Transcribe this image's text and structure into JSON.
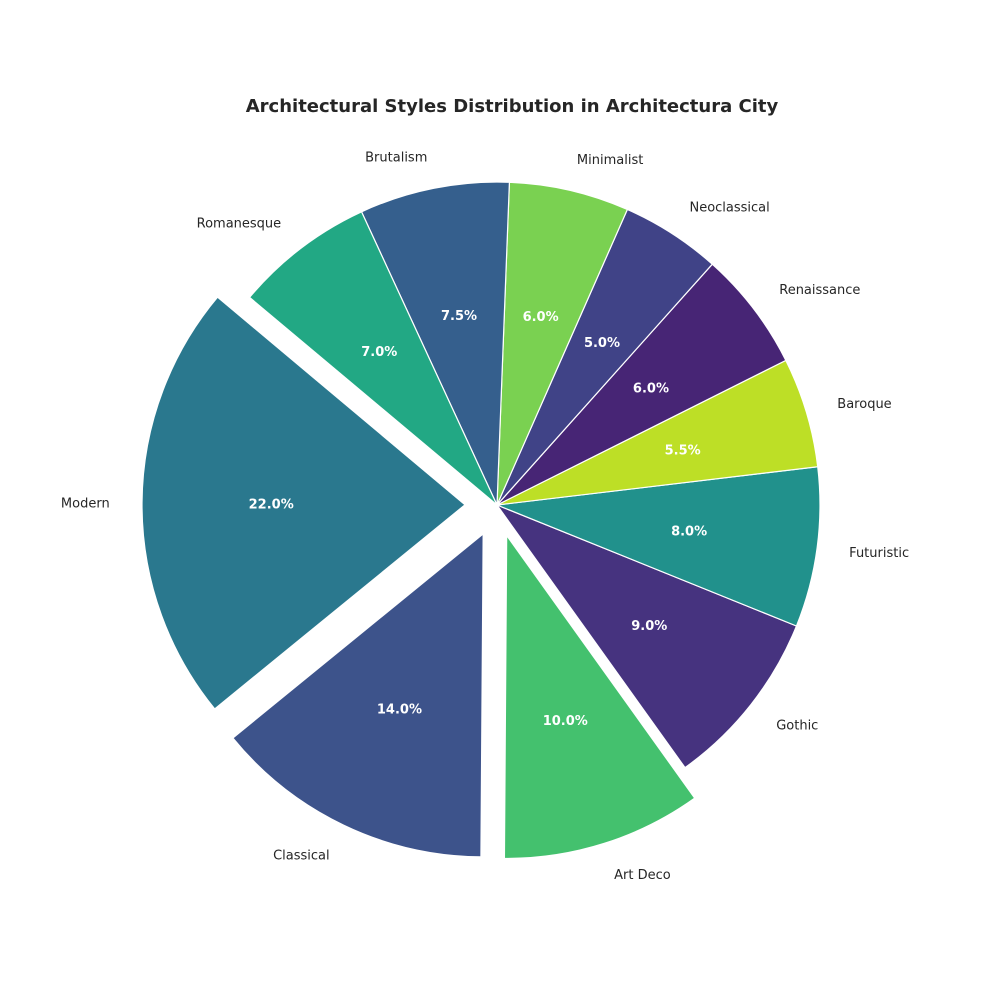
{
  "chart_data": {
    "type": "pie",
    "title": "Architectural Styles Distribution in Architectura City",
    "slices": [
      {
        "label": "Modern",
        "value": 22.0,
        "pct_label": "22.0%",
        "color": "#2a788e",
        "exploded": true
      },
      {
        "label": "Classical",
        "value": 14.0,
        "pct_label": "14.0%",
        "color": "#3d538b",
        "exploded": true
      },
      {
        "label": "Art Deco",
        "value": 10.0,
        "pct_label": "10.0%",
        "color": "#44c16e",
        "exploded": true
      },
      {
        "label": "Gothic",
        "value": 9.0,
        "pct_label": "9.0%",
        "color": "#46337f",
        "exploded": false
      },
      {
        "label": "Futuristic",
        "value": 8.0,
        "pct_label": "8.0%",
        "color": "#21918c",
        "exploded": false
      },
      {
        "label": "Baroque",
        "value": 5.5,
        "pct_label": "5.5%",
        "color": "#bddf26",
        "exploded": false
      },
      {
        "label": "Renaissance",
        "value": 6.0,
        "pct_label": "6.0%",
        "color": "#472575",
        "exploded": false
      },
      {
        "label": "Neoclassical",
        "value": 5.0,
        "pct_label": "5.0%",
        "color": "#404387",
        "exploded": false
      },
      {
        "label": "Minimalist",
        "value": 6.0,
        "pct_label": "6.0%",
        "color": "#7ad151",
        "exploded": false
      },
      {
        "label": "Brutalism",
        "value": 7.5,
        "pct_label": "7.5%",
        "color": "#355f8d",
        "exploded": false
      },
      {
        "label": "Romanesque",
        "value": 7.0,
        "pct_label": "7.0%",
        "color": "#22a884",
        "exploded": false
      }
    ],
    "start_angle_deg": 140,
    "direction": "counterclockwise",
    "legend": "none"
  }
}
